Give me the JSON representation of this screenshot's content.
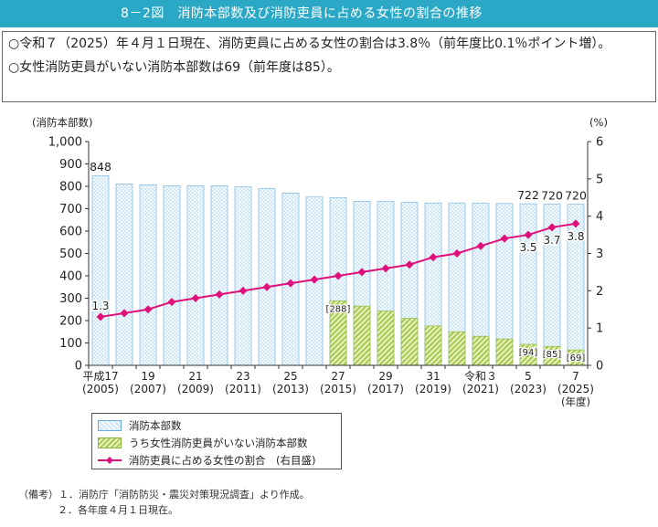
{
  "header": {
    "title": "8－2図　消防本部数及び消防吏員に占める女性の割合の推移"
  },
  "summary": {
    "line1": "○令和７（2025）年４月１日現在、消防吏員に占める女性の割合は3.8％（前年度比0.1％ポイント増）。",
    "line2": "○女性消防吏員がいない消防本部数は69（前年度は85）。"
  },
  "chart_data": {
    "type": "bar",
    "ylabel_left": "(消防本部数)",
    "ylabel_right": "(%)",
    "xlabel": "(年度)",
    "ylim_left": [
      0,
      1000
    ],
    "ylim_right": [
      0,
      6
    ],
    "left_ticks": [
      "0",
      "100",
      "200",
      "300",
      "400",
      "500",
      "600",
      "700",
      "800",
      "900",
      "1,000"
    ],
    "right_ticks": [
      "0",
      "1",
      "2",
      "3",
      "4",
      "5",
      "6"
    ],
    "x_years": [
      2005,
      2006,
      2007,
      2008,
      2009,
      2010,
      2011,
      2012,
      2013,
      2014,
      2015,
      2016,
      2017,
      2018,
      2019,
      2020,
      2021,
      2022,
      2023,
      2024,
      2025
    ],
    "x_tick_labels": [
      {
        "index": 0,
        "era": "平成17",
        "year": "(2005)"
      },
      {
        "index": 2,
        "era": "19",
        "year": "(2007)"
      },
      {
        "index": 4,
        "era": "21",
        "year": "(2009)"
      },
      {
        "index": 6,
        "era": "23",
        "year": "(2011)"
      },
      {
        "index": 8,
        "era": "25",
        "year": "(2013)"
      },
      {
        "index": 10,
        "era": "27",
        "year": "(2015)"
      },
      {
        "index": 12,
        "era": "29",
        "year": "(2017)"
      },
      {
        "index": 14,
        "era": "31",
        "year": "(2019)"
      },
      {
        "index": 16,
        "era": "令和３",
        "year": "(2021)"
      },
      {
        "index": 18,
        "era": "5",
        "year": "(2023)"
      },
      {
        "index": 20,
        "era": "7",
        "year": "(2025)"
      }
    ],
    "series": [
      {
        "name": "消防本部数",
        "values": [
          848,
          811,
          807,
          803,
          803,
          802,
          798,
          791,
          770,
          752,
          750,
          733,
          732,
          728,
          726,
          726,
          724,
          723,
          722,
          720,
          720
        ]
      },
      {
        "name": "うち女性消防吏員がいない消防本部数",
        "values": [
          null,
          null,
          null,
          null,
          null,
          null,
          null,
          null,
          null,
          null,
          288,
          265,
          243,
          210,
          176,
          150,
          130,
          118,
          94,
          85,
          69
        ]
      },
      {
        "name": "消防吏員に占める女性の割合　(右目盛)",
        "values": [
          1.3,
          1.4,
          1.5,
          1.7,
          1.8,
          1.9,
          2.0,
          2.1,
          2.2,
          2.3,
          2.4,
          2.5,
          2.6,
          2.7,
          2.9,
          3.0,
          3.2,
          3.4,
          3.5,
          3.7,
          3.8
        ]
      }
    ],
    "bar_labels": [
      {
        "index": 0,
        "text": "848"
      },
      {
        "index": 18,
        "text": "722"
      },
      {
        "index": 19,
        "text": "720"
      },
      {
        "index": 20,
        "text": "720"
      }
    ],
    "green_labels": [
      {
        "index": 10,
        "text": "[288]"
      },
      {
        "index": 18,
        "text": "[94]"
      },
      {
        "index": 19,
        "text": "[85]"
      },
      {
        "index": 20,
        "text": "[69]"
      }
    ],
    "line_labels": [
      {
        "index": 0,
        "text": "1.3"
      },
      {
        "index": 18,
        "text": "3.5"
      },
      {
        "index": 19,
        "text": "3.7"
      },
      {
        "index": 20,
        "text": "3.8"
      }
    ],
    "colors": {
      "bar": "#cfe6f7",
      "bar_border": "#6aa9d8",
      "green": "#e4efb8",
      "green_hatch": "#9cc23f",
      "line": "#e0107a"
    },
    "grid": false,
    "legend_position": "bottom-left"
  },
  "legend": {
    "item1": "消防本部数",
    "item2": "うち女性消防吏員がいない消防本部数",
    "item3": "消防吏員に占める女性の割合　(右目盛)"
  },
  "notes": {
    "line1": "（備考）１．消防庁「消防防災・震災対策現況調査」より作成。",
    "line2": "２．各年度４月１日現在。"
  }
}
